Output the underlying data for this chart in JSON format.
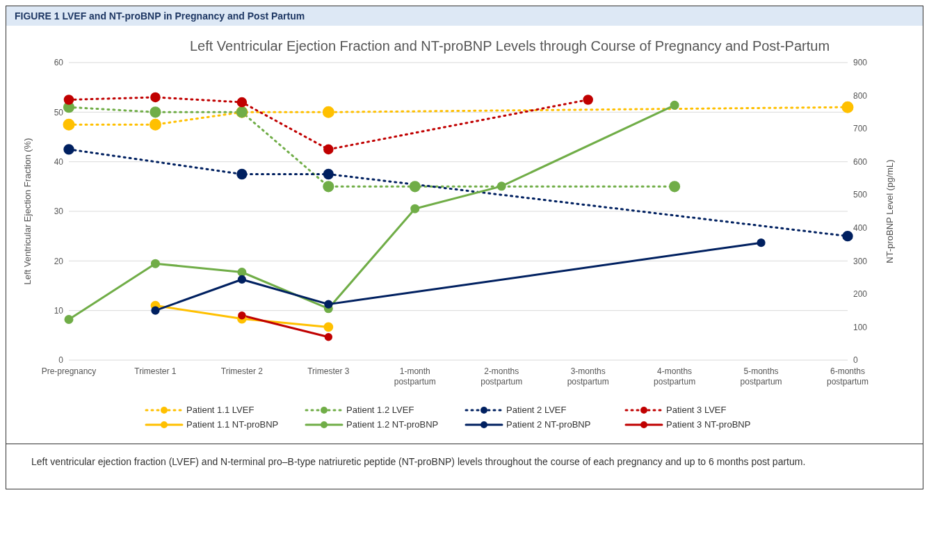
{
  "chart_data": {
    "type": "line",
    "title": "FIGURE 1 LVEF and NT-proBNP in Pregnancy and Post Partum",
    "subtitle": "Left Ventricular Ejection Fraction and NT-proBNP Levels through Course of Pregnancy and Post-Partum",
    "ylabel": "Left Ventricular Ejection Fraction (%)",
    "y2label": "NT-proBNP Level (pg/mL)",
    "annotations": [
      "Left ventricular ejection fraction (LVEF) and N-terminal pro–B-type natriuretic peptide (NT-proBNP) levels throughout the course of each pregnancy and up to 6 months post partum."
    ],
    "categories": [
      "Pre-pregnancy",
      "Trimester 1",
      "Trimester 2",
      "Trimester 3",
      "1-month postpartum",
      "2-months postpartum",
      "3-months postpartum",
      "4-months postpartum",
      "5-months postpartum",
      "6-months postpartum"
    ],
    "series": [
      {
        "name": "Patient 1.1 LVEF",
        "color": "#ffc000",
        "line_style": "dotted",
        "values": [
          47.5,
          47.5,
          50,
          50,
          null,
          null,
          null,
          null,
          null,
          51
        ]
      },
      {
        "name": "Patient 1.2 LVEF",
        "color": "#70ad47",
        "line_style": "dotted",
        "values": [
          51,
          50,
          50,
          35,
          35,
          null,
          null,
          35,
          null,
          null
        ]
      },
      {
        "name": "Patient 2 LVEF",
        "color": "#002060",
        "line_style": "dotted",
        "values": [
          42.5,
          null,
          37.5,
          37.5,
          null,
          null,
          null,
          null,
          null,
          25
        ]
      },
      {
        "name": "Patient 3 LVEF",
        "color": "#c00000",
        "line_style": "dotted",
        "values": [
          52.5,
          53,
          52,
          42.5,
          null,
          null,
          52.5,
          null,
          null,
          null
        ]
      },
      {
        "name": "Patient 1.1 NT-proBNP",
        "color": "#ffc000",
        "line_style": "solid",
        "axis": "y2",
        "values": [
          null,
          165,
          125,
          100,
          null,
          null,
          null,
          null,
          null,
          null
        ]
      },
      {
        "name": "Patient 1.2 NT-proBNP",
        "color": "#70ad47",
        "line_style": "solid",
        "axis": "y2",
        "values": [
          123,
          292,
          266,
          156,
          458,
          526,
          null,
          771,
          null,
          null
        ]
      },
      {
        "name": "Patient 2 NT-proBNP",
        "color": "#002060",
        "line_style": "solid",
        "axis": "y2",
        "values": [
          null,
          150,
          244,
          169,
          null,
          null,
          null,
          null,
          355,
          null
        ]
      },
      {
        "name": "Patient 3 NT-proBNP",
        "color": "#c00000",
        "line_style": "solid",
        "axis": "y2",
        "values": [
          null,
          null,
          135,
          70,
          null,
          null,
          null,
          null,
          null,
          null
        ]
      }
    ],
    "ylim": [
      0,
      60
    ],
    "yticks": [
      0,
      10,
      20,
      30,
      40,
      50,
      60
    ],
    "y2lim": [
      0,
      900
    ],
    "y2ticks": [
      0,
      100,
      200,
      300,
      400,
      500,
      600,
      700,
      800,
      900
    ],
    "grid": "y",
    "legend": "bottom",
    "marker": "circle"
  }
}
